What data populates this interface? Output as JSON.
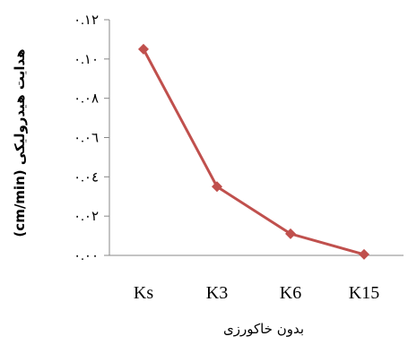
{
  "chart_data": {
    "type": "line",
    "categories": [
      "Ks",
      "K3",
      "K6",
      "K15"
    ],
    "values": [
      0.105,
      0.035,
      0.011,
      0.0005
    ],
    "ylim": [
      0,
      0.12
    ],
    "yticks": [
      0,
      0.02,
      0.04,
      0.06,
      0.08,
      0.1,
      0.12
    ],
    "ytick_labels": [
      "٠.٠٠",
      "٠.٠٢",
      "٠.٠٤",
      "٠.٠٦",
      "٠.٠٨",
      "٠.١٠",
      "٠.١٢"
    ],
    "xlabel": "بدون خاکورزی",
    "ylabel": "هدایت هیدرولیکی (cm/min)",
    "grid": false,
    "legend": "none",
    "series_color": "#c0504d",
    "marker": "diamond"
  }
}
